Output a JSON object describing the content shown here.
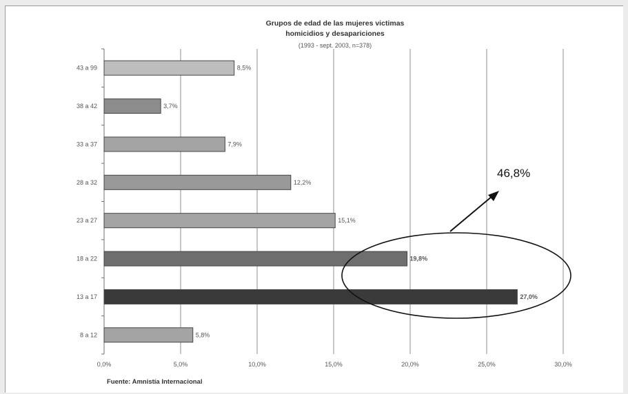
{
  "chart_data": {
    "type": "bar",
    "orientation": "horizontal",
    "title": [
      "Grupos de edad de las mujeres victimas",
      "homicidios y desapariciones"
    ],
    "subtitle": "(1993 - sept. 2003, n=378)",
    "categories": [
      "43 a 99",
      "38 a 42",
      "33 a 37",
      "28 a 32",
      "23 a 27",
      "18 a 22",
      "13 a 17",
      "8 a 12"
    ],
    "values": [
      8.5,
      3.7,
      7.9,
      12.2,
      15.1,
      19.8,
      27.0,
      5.8
    ],
    "value_labels": [
      "8,5%",
      "3,7%",
      "7,9%",
      "12,2%",
      "15,1%",
      "19,8%",
      "27,0%",
      "5,8%"
    ],
    "bar_colors": [
      "#bdbdbd",
      "#8c8c8c",
      "#a4a4a4",
      "#999999",
      "#a4a4a4",
      "#6e6e6e",
      "#3a3a3a",
      "#a4a4a4"
    ],
    "bold_labels": [
      false,
      false,
      false,
      false,
      false,
      true,
      true,
      false
    ],
    "xlim": [
      0,
      30
    ],
    "xticks": [
      0,
      5,
      10,
      15,
      20,
      25,
      30
    ],
    "xtick_labels": [
      "0,0%",
      "5,0%",
      "10,0%",
      "15,0%",
      "20,0%",
      "25,0%",
      "30,0%"
    ],
    "grid": "vertical",
    "legend": "none",
    "source": "Fuente: Amnistía Internacional",
    "annotation": {
      "text": "46,8%",
      "highlights": [
        "18 a 22",
        "13 a 17"
      ]
    }
  }
}
